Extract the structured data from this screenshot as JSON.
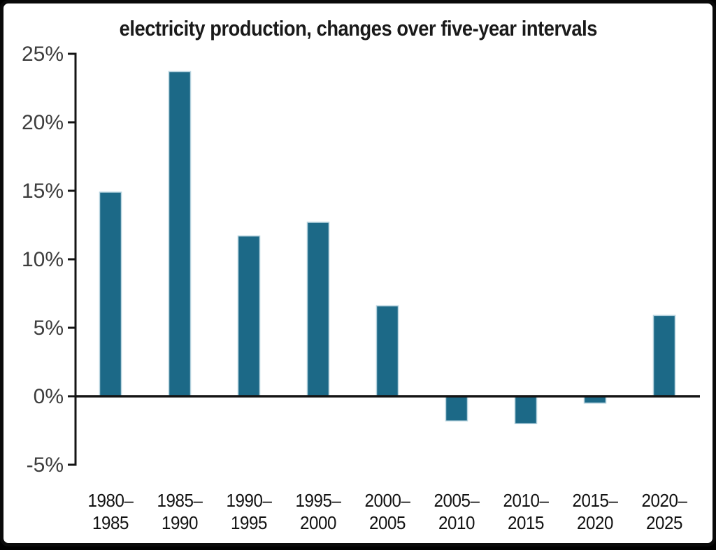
{
  "chart_data": {
    "type": "bar",
    "title": "electricity production, changes over five-year intervals",
    "categories": [
      "1980–1985",
      "1985–1990",
      "1990–1995",
      "1995–2000",
      "2000–2005",
      "2005–2010",
      "2010–2015",
      "2015–2020",
      "2020–2025"
    ],
    "values": [
      14.9,
      23.7,
      11.7,
      12.7,
      6.6,
      -1.8,
      -2.0,
      -0.5,
      5.9
    ],
    "xlabel": "",
    "ylabel": "",
    "ylim": [
      -5,
      25
    ],
    "y_ticks": [
      25,
      20,
      15,
      10,
      5,
      0,
      -5
    ],
    "y_tick_suffix": "%",
    "grid": false,
    "legend": null,
    "zero_baseline": true,
    "colors": {
      "bar_fill": "#1c6987",
      "bar_edge": "#b5d2de",
      "axis_line": "#141414",
      "zero_line": "#141414",
      "y_tick_label": "#3d3d3d",
      "x_tick_label": "#121212",
      "title": "#1a1a1a",
      "background": "#ffffff",
      "outer_border": "#0a0a0a"
    }
  }
}
